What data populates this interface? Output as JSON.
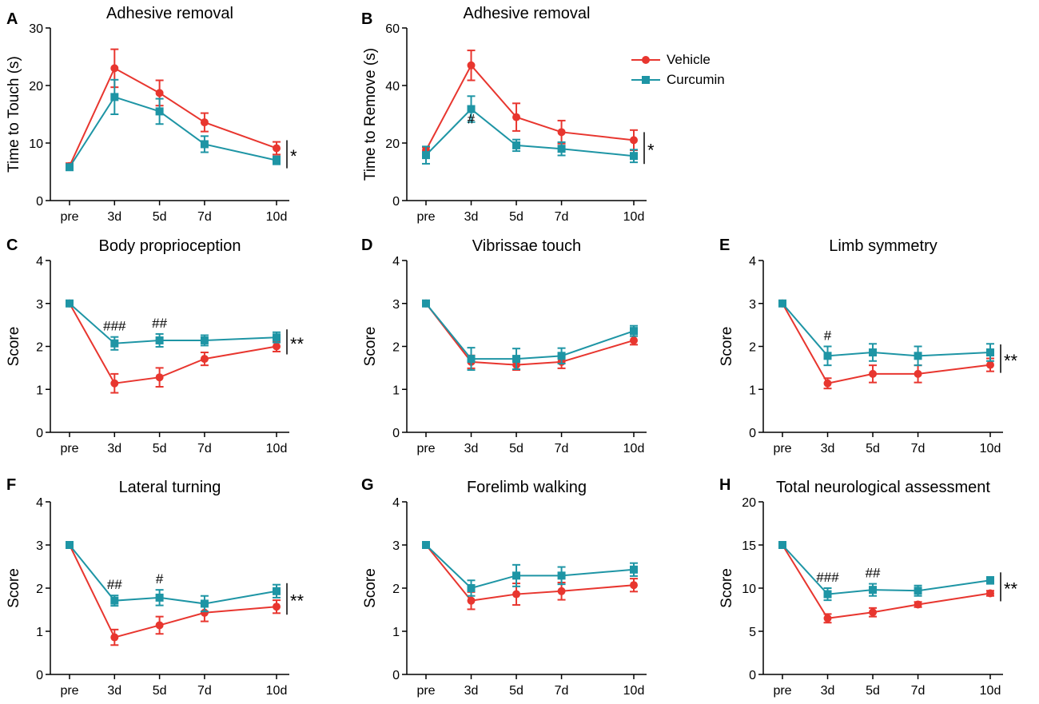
{
  "colors": {
    "vehicle": "#e8362f",
    "curcumin": "#1e95a5",
    "axis": "#000000"
  },
  "legend": {
    "items": [
      {
        "label": "Vehicle",
        "color": "#e8362f",
        "marker": "circle"
      },
      {
        "label": "Curcumin",
        "color": "#1e95a5",
        "marker": "square"
      }
    ]
  },
  "chart_data": [
    {
      "id": "A",
      "type": "line",
      "panel_label": "A",
      "title": "Adhesive removal",
      "xlabel": "",
      "ylabel": "Time to Touch (s)",
      "categories": [
        "pre",
        "3d",
        "5d",
        "7d",
        "10d"
      ],
      "x": [
        0,
        1,
        2,
        3,
        4.6
      ],
      "ylim": [
        0,
        30
      ],
      "yticks": [
        0,
        10,
        20,
        30
      ],
      "series": [
        {
          "name": "Vehicle",
          "values": [
            6,
            23,
            18.7,
            13.6,
            9.1
          ],
          "err": [
            0.5,
            3.3,
            2.2,
            1.6,
            1.1
          ]
        },
        {
          "name": "Curcumin",
          "values": [
            5.8,
            18,
            15.5,
            9.8,
            7
          ],
          "err": [
            0.5,
            3.0,
            2.2,
            1.4,
            0.7
          ]
        }
      ],
      "annotations": [],
      "significance": "*"
    },
    {
      "id": "B",
      "type": "line",
      "panel_label": "B",
      "title": "Adhesive removal",
      "xlabel": "",
      "ylabel": "Time to Remove (s)",
      "categories": [
        "pre",
        "3d",
        "5d",
        "7d",
        "10d"
      ],
      "x": [
        0,
        1,
        2,
        3,
        4.6
      ],
      "ylim": [
        0,
        60
      ],
      "yticks": [
        0,
        20,
        40,
        60
      ],
      "series": [
        {
          "name": "Vehicle",
          "values": [
            17.5,
            47,
            29,
            23.8,
            21
          ],
          "err": [
            1.0,
            5.2,
            4.8,
            4.0,
            3.5
          ]
        },
        {
          "name": "Curcumin",
          "values": [
            15.8,
            31.8,
            19.2,
            18,
            15.5
          ],
          "err": [
            3.0,
            4.5,
            2.0,
            2.3,
            2.2
          ]
        }
      ],
      "annotations": [
        {
          "at": 1,
          "text": "#"
        }
      ],
      "significance": "*"
    },
    {
      "id": "C",
      "type": "line",
      "panel_label": "C",
      "title": "Body proprioception",
      "xlabel": "",
      "ylabel": "Score",
      "categories": [
        "pre",
        "3d",
        "5d",
        "7d",
        "10d"
      ],
      "x": [
        0,
        1,
        2,
        3,
        4.6
      ],
      "ylim": [
        0,
        4
      ],
      "yticks": [
        0,
        1,
        2,
        3,
        4
      ],
      "series": [
        {
          "name": "Vehicle",
          "values": [
            3,
            1.14,
            1.28,
            1.71,
            2
          ],
          "err": [
            0,
            0.22,
            0.22,
            0.15,
            0.12
          ]
        },
        {
          "name": "Curcumin",
          "values": [
            3,
            2.07,
            2.14,
            2.14,
            2.21
          ],
          "err": [
            0,
            0.15,
            0.15,
            0.12,
            0.12
          ]
        }
      ],
      "annotations": [
        {
          "at": 1,
          "text": "###"
        },
        {
          "at": 2,
          "text": "##"
        }
      ],
      "significance": "**"
    },
    {
      "id": "D",
      "type": "line",
      "panel_label": "D",
      "title": "Vibrissae touch",
      "xlabel": "",
      "ylabel": "Score",
      "categories": [
        "pre",
        "3d",
        "5d",
        "7d",
        "10d"
      ],
      "x": [
        0,
        1,
        2,
        3,
        4.6
      ],
      "ylim": [
        0,
        4
      ],
      "yticks": [
        0,
        1,
        2,
        3,
        4
      ],
      "series": [
        {
          "name": "Vehicle",
          "values": [
            3,
            1.64,
            1.57,
            1.64,
            2.14
          ],
          "err": [
            0,
            0.15,
            0.12,
            0.15,
            0.1
          ]
        },
        {
          "name": "Curcumin",
          "values": [
            3,
            1.71,
            1.71,
            1.78,
            2.36
          ],
          "err": [
            0,
            0.26,
            0.24,
            0.18,
            0.12
          ]
        }
      ],
      "annotations": [],
      "significance": ""
    },
    {
      "id": "E",
      "type": "line",
      "panel_label": "E",
      "title": "Limb symmetry",
      "xlabel": "",
      "ylabel": "Score",
      "categories": [
        "pre",
        "3d",
        "5d",
        "7d",
        "10d"
      ],
      "x": [
        0,
        1,
        2,
        3,
        4.6
      ],
      "ylim": [
        0,
        4
      ],
      "yticks": [
        0,
        1,
        2,
        3,
        4
      ],
      "series": [
        {
          "name": "Vehicle",
          "values": [
            3,
            1.14,
            1.36,
            1.36,
            1.57
          ],
          "err": [
            0,
            0.12,
            0.2,
            0.2,
            0.15
          ]
        },
        {
          "name": "Curcumin",
          "values": [
            3,
            1.78,
            1.86,
            1.78,
            1.86
          ],
          "err": [
            0,
            0.22,
            0.2,
            0.22,
            0.2
          ]
        }
      ],
      "annotations": [
        {
          "at": 1,
          "text": "#"
        }
      ],
      "significance": "**"
    },
    {
      "id": "F",
      "type": "line",
      "panel_label": "F",
      "title": "Lateral turning",
      "xlabel": "",
      "ylabel": "Score",
      "categories": [
        "pre",
        "3d",
        "5d",
        "7d",
        "10d"
      ],
      "x": [
        0,
        1,
        2,
        3,
        4.6
      ],
      "ylim": [
        0,
        4
      ],
      "yticks": [
        0,
        1,
        2,
        3,
        4
      ],
      "series": [
        {
          "name": "Vehicle",
          "values": [
            3,
            0.86,
            1.14,
            1.43,
            1.57
          ],
          "err": [
            0,
            0.18,
            0.2,
            0.2,
            0.15
          ]
        },
        {
          "name": "Curcumin",
          "values": [
            3,
            1.71,
            1.78,
            1.64,
            1.93
          ],
          "err": [
            0,
            0.12,
            0.18,
            0.18,
            0.15
          ]
        }
      ],
      "annotations": [
        {
          "at": 1,
          "text": "##"
        },
        {
          "at": 2,
          "text": "#"
        }
      ],
      "significance": "**"
    },
    {
      "id": "G",
      "type": "line",
      "panel_label": "G",
      "title": "Forelimb walking",
      "xlabel": "",
      "ylabel": "Score",
      "categories": [
        "pre",
        "3d",
        "5d",
        "7d",
        "10d"
      ],
      "x": [
        0,
        1,
        2,
        3,
        4.6
      ],
      "ylim": [
        0,
        4
      ],
      "yticks": [
        0,
        1,
        2,
        3,
        4
      ],
      "series": [
        {
          "name": "Vehicle",
          "values": [
            3,
            1.71,
            1.86,
            1.93,
            2.07
          ],
          "err": [
            0,
            0.2,
            0.25,
            0.2,
            0.15
          ]
        },
        {
          "name": "Curcumin",
          "values": [
            3,
            2,
            2.29,
            2.29,
            2.43
          ],
          "err": [
            0,
            0.18,
            0.25,
            0.2,
            0.15
          ]
        }
      ],
      "annotations": [],
      "significance": ""
    },
    {
      "id": "H",
      "type": "line",
      "panel_label": "H",
      "title": "Total neurological assessment",
      "xlabel": "",
      "ylabel": "Score",
      "categories": [
        "pre",
        "3d",
        "5d",
        "7d",
        "10d"
      ],
      "x": [
        0,
        1,
        2,
        3,
        4.6
      ],
      "ylim": [
        0,
        20
      ],
      "yticks": [
        0,
        5,
        10,
        15,
        20
      ],
      "series": [
        {
          "name": "Vehicle",
          "values": [
            15,
            6.5,
            7.2,
            8.1,
            9.4
          ],
          "err": [
            0,
            0.5,
            0.5,
            0.3,
            0.3
          ]
        },
        {
          "name": "Curcumin",
          "values": [
            15,
            9.3,
            9.8,
            9.7,
            10.9
          ],
          "err": [
            0,
            0.7,
            0.7,
            0.6,
            0.4
          ]
        }
      ],
      "annotations": [
        {
          "at": 1,
          "text": "###"
        },
        {
          "at": 2,
          "text": "##"
        }
      ],
      "significance": "**"
    }
  ]
}
